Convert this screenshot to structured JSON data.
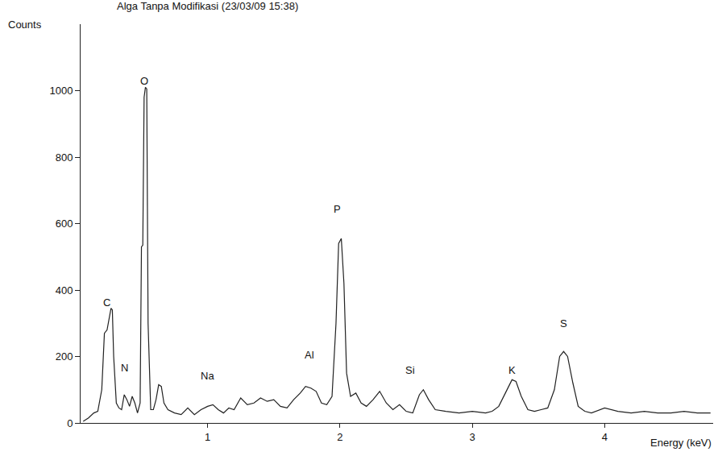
{
  "chart_data": {
    "type": "line",
    "title": "Alga Tanpa Modifikasi (23/03/09 15:38)",
    "x_label": "Energy (keV)",
    "y_label": "Counts",
    "color": "#222222",
    "grid": false,
    "x": [
      0.06,
      0.1,
      0.14,
      0.17,
      0.2,
      0.22,
      0.24,
      0.26,
      0.27,
      0.28,
      0.29,
      0.31,
      0.33,
      0.35,
      0.37,
      0.39,
      0.41,
      0.43,
      0.45,
      0.47,
      0.49,
      0.5,
      0.51,
      0.52,
      0.53,
      0.54,
      0.55,
      0.57,
      0.59,
      0.61,
      0.63,
      0.65,
      0.67,
      0.7,
      0.75,
      0.8,
      0.85,
      0.9,
      0.95,
      1.0,
      1.04,
      1.08,
      1.12,
      1.16,
      1.2,
      1.25,
      1.3,
      1.35,
      1.4,
      1.45,
      1.5,
      1.55,
      1.6,
      1.65,
      1.7,
      1.74,
      1.78,
      1.82,
      1.86,
      1.9,
      1.94,
      1.97,
      1.99,
      2.01,
      2.03,
      2.05,
      2.08,
      2.12,
      2.16,
      2.2,
      2.25,
      2.3,
      2.35,
      2.4,
      2.45,
      2.5,
      2.55,
      2.6,
      2.63,
      2.67,
      2.72,
      2.8,
      2.9,
      3.0,
      3.1,
      3.15,
      3.2,
      3.25,
      3.3,
      3.33,
      3.37,
      3.42,
      3.47,
      3.52,
      3.57,
      3.62,
      3.66,
      3.69,
      3.72,
      3.76,
      3.8,
      3.85,
      3.9,
      4.0,
      4.1,
      4.2,
      4.3,
      4.4,
      4.5,
      4.6,
      4.7,
      4.8
    ],
    "values": [
      5,
      15,
      30,
      35,
      100,
      270,
      280,
      320,
      345,
      340,
      200,
      60,
      45,
      40,
      85,
      70,
      50,
      80,
      60,
      30,
      60,
      530,
      535,
      980,
      1010,
      1005,
      300,
      40,
      40,
      70,
      115,
      110,
      60,
      40,
      30,
      25,
      45,
      25,
      40,
      50,
      55,
      40,
      30,
      45,
      40,
      75,
      55,
      60,
      75,
      65,
      70,
      50,
      45,
      70,
      90,
      110,
      105,
      95,
      60,
      55,
      80,
      300,
      540,
      555,
      420,
      150,
      80,
      90,
      60,
      50,
      70,
      95,
      60,
      40,
      55,
      35,
      30,
      85,
      100,
      70,
      40,
      35,
      30,
      35,
      30,
      35,
      50,
      90,
      130,
      125,
      80,
      40,
      35,
      40,
      45,
      100,
      200,
      215,
      200,
      120,
      50,
      35,
      30,
      45,
      35,
      30,
      35,
      30,
      30,
      35,
      30,
      30
    ],
    "xlim": [
      0.04,
      4.82
    ],
    "xticks": [
      1,
      2,
      3,
      4
    ],
    "ylim": [
      0,
      1200
    ],
    "yticks": [
      0,
      200,
      400,
      600,
      800,
      1000
    ],
    "annotations": [
      {
        "text": "C",
        "x": 0.24,
        "y": 362
      },
      {
        "text": "N",
        "x": 0.37,
        "y": 165
      },
      {
        "text": "O",
        "x": 0.52,
        "y": 1030
      },
      {
        "text": "Na",
        "x": 1.0,
        "y": 143
      },
      {
        "text": "Al",
        "x": 1.77,
        "y": 206
      },
      {
        "text": "P",
        "x": 1.98,
        "y": 643
      },
      {
        "text": "Si",
        "x": 2.53,
        "y": 158
      },
      {
        "text": "K",
        "x": 3.3,
        "y": 158
      },
      {
        "text": "S",
        "x": 3.69,
        "y": 299
      }
    ]
  }
}
